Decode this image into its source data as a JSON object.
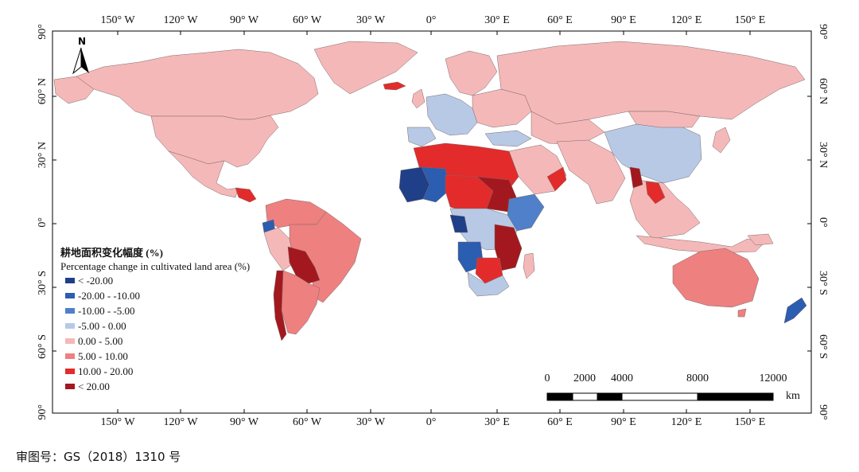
{
  "legend": {
    "title_cn": "耕地面积变化幅度 (%)",
    "title_en": "Percentage change in cultivated land area (%)",
    "items": [
      {
        "label": "< -20.00",
        "color": "#1f3f88"
      },
      {
        "label": "-20.00 - -10.00",
        "color": "#2b5db0"
      },
      {
        "label": "-10.00 - -5.00",
        "color": "#4f80c9"
      },
      {
        "label": "-5.00 - 0.00",
        "color": "#b8c9e6"
      },
      {
        "label": "0.00 - 5.00",
        "color": "#f5b8b8"
      },
      {
        "label": "5.00 - 10.00",
        "color": "#ee8080"
      },
      {
        "label": "10.00 - 20.00",
        "color": "#e32b2b"
      },
      {
        "label": "< 20.00",
        "color": "#a3181e"
      }
    ]
  },
  "axes": {
    "top": [
      "150° W",
      "120° W",
      "90° W",
      "60° W",
      "30° W",
      "0°",
      "30° E",
      "60° E",
      "90° E",
      "120° E",
      "150° E"
    ],
    "bottom": [
      "150° W",
      "120° W",
      "90° W",
      "60° W",
      "30° W",
      "0°",
      "30° E",
      "60° E",
      "90° E",
      "120° E",
      "150° E"
    ],
    "left": [
      "90°",
      "60° N",
      "30° N",
      "0°",
      "30° S",
      "60° S",
      "90°"
    ],
    "right": [
      "90°",
      "60° N",
      "30° N",
      "0°",
      "30° S",
      "60° S",
      "90°"
    ]
  },
  "north_arrow": {
    "label": "N",
    "icon": "north-arrow-icon"
  },
  "scale_bar": {
    "labels": [
      "0",
      "2000",
      "4000",
      "8000",
      "12000"
    ],
    "unit": "km"
  },
  "approval_number": "审图号：GS（2018）1310 号"
}
